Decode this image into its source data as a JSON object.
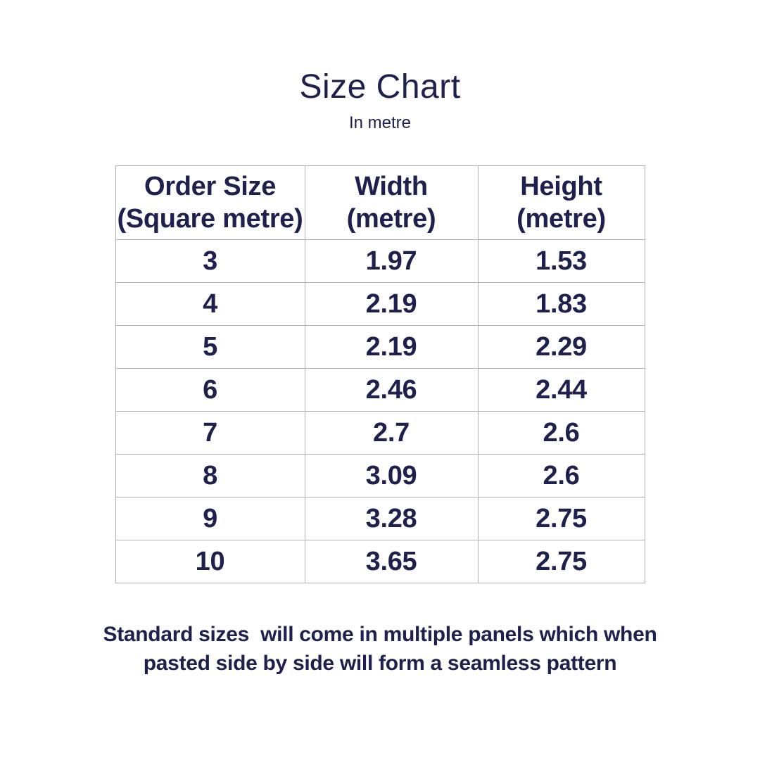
{
  "chart_data": {
    "type": "table",
    "title": "Size Chart",
    "subtitle": "In metre",
    "columns": [
      "Order Size (Square metre)",
      "Width (metre)",
      "Height (metre)"
    ],
    "header": [
      {
        "line1": "Order Size",
        "line2": "(Square metre)"
      },
      {
        "line1": "Width",
        "line2": "(metre)"
      },
      {
        "line1": "Height",
        "line2": "(metre)"
      }
    ],
    "rows": [
      [
        "3",
        "1.97",
        "1.53"
      ],
      [
        "4",
        "2.19",
        "1.83"
      ],
      [
        "5",
        "2.19",
        "2.29"
      ],
      [
        "6",
        "2.46",
        "2.44"
      ],
      [
        "7",
        "2.7",
        "2.6"
      ],
      [
        "8",
        "3.09",
        "2.6"
      ],
      [
        "9",
        "3.28",
        "2.75"
      ],
      [
        "10",
        "3.65",
        "2.75"
      ]
    ]
  },
  "footer": {
    "lines": [
      "Standard sizes  will come in multiple panels which when",
      "pasted side by side will form a seamless pattern"
    ]
  },
  "colors": {
    "text": "#20204e",
    "border": "#b3b3ae",
    "background": "#ffffff"
  }
}
